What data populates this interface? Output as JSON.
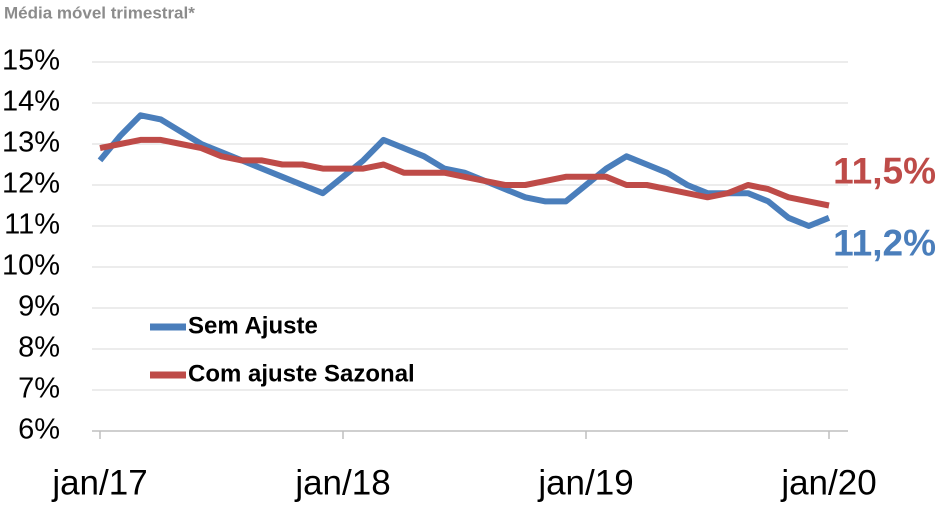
{
  "chart_data": {
    "type": "line",
    "subtitle": "Média móvel trimestral*",
    "categories": [
      "jan/17",
      null,
      null,
      null,
      null,
      null,
      null,
      null,
      null,
      null,
      null,
      null,
      "jan/18",
      null,
      null,
      null,
      null,
      null,
      null,
      null,
      null,
      null,
      null,
      null,
      "jan/19",
      null,
      null,
      null,
      null,
      null,
      null,
      null,
      null,
      null,
      null,
      null,
      "jan/20"
    ],
    "series": [
      {
        "name": "Sem Ajuste",
        "color": "#4a7ebb",
        "values": [
          12.6,
          13.2,
          13.7,
          13.6,
          13.3,
          13.0,
          12.8,
          12.6,
          12.4,
          12.2,
          12.0,
          11.8,
          12.2,
          12.6,
          13.1,
          12.9,
          12.7,
          12.4,
          12.3,
          12.1,
          11.9,
          11.7,
          11.6,
          11.6,
          12.0,
          12.4,
          12.7,
          12.5,
          12.3,
          12.0,
          11.8,
          11.8,
          11.8,
          11.6,
          11.2,
          11.0,
          11.2
        ]
      },
      {
        "name": "Com ajuste Sazonal",
        "color": "#be4b48",
        "values": [
          12.9,
          13.0,
          13.1,
          13.1,
          13.0,
          12.9,
          12.7,
          12.6,
          12.6,
          12.5,
          12.5,
          12.4,
          12.4,
          12.4,
          12.5,
          12.3,
          12.3,
          12.3,
          12.2,
          12.1,
          12.0,
          12.0,
          12.1,
          12.2,
          12.2,
          12.2,
          12.0,
          12.0,
          11.9,
          11.8,
          11.7,
          11.8,
          12.0,
          11.9,
          11.7,
          11.6,
          11.5
        ]
      }
    ],
    "annotations": [
      "11,2%",
      "11,5%"
    ],
    "ylim": [
      6,
      15
    ],
    "yticks": [
      {
        "value": 6,
        "label": "6%"
      },
      {
        "value": 7,
        "label": "7%"
      },
      {
        "value": 8,
        "label": "8%"
      },
      {
        "value": 9,
        "label": "9%"
      },
      {
        "value": 10,
        "label": "10%"
      },
      {
        "value": 11,
        "label": "11%"
      },
      {
        "value": 12,
        "label": "12%"
      },
      {
        "value": 13,
        "label": "13%"
      },
      {
        "value": 14,
        "label": "14%"
      },
      {
        "value": 15,
        "label": "15%"
      }
    ],
    "grid": true
  }
}
